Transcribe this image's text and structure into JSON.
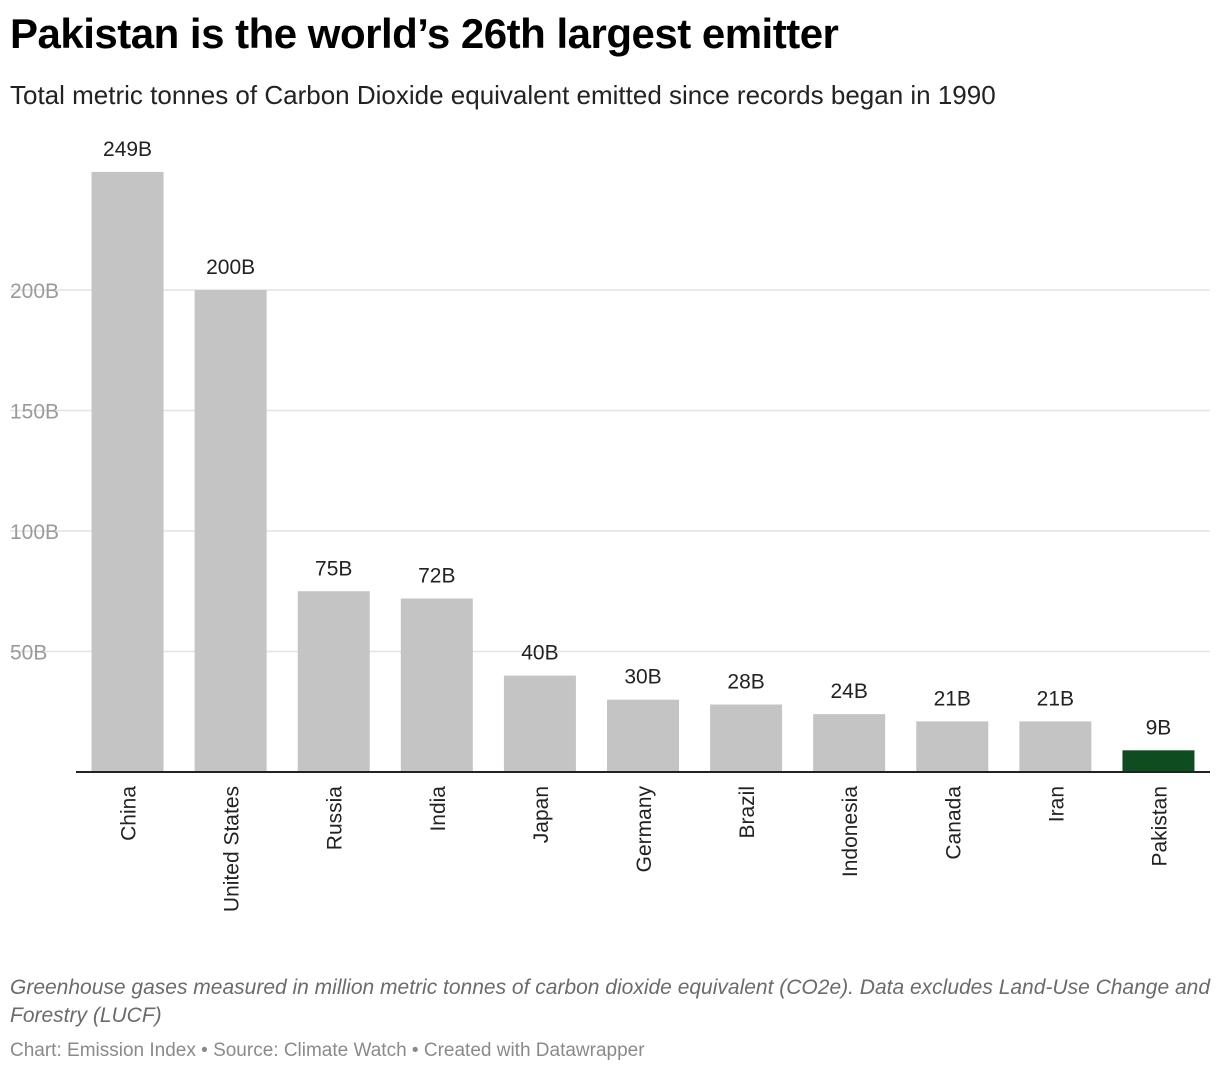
{
  "header": {
    "title": "Pakistan is the world’s 26th largest emitter",
    "subtitle": "Total metric tonnes of Carbon Dioxide equivalent emitted since records began in 1990"
  },
  "chart_data": {
    "type": "bar",
    "categories": [
      "China",
      "United States",
      "Russia",
      "India",
      "Japan",
      "Germany",
      "Brazil",
      "Indonesia",
      "Canada",
      "Iran",
      "Pakistan"
    ],
    "values": [
      249,
      200,
      75,
      72,
      40,
      30,
      28,
      24,
      21,
      21,
      9
    ],
    "value_labels": [
      "249B",
      "200B",
      "75B",
      "72B",
      "40B",
      "30B",
      "28B",
      "24B",
      "21B",
      "21B",
      "9B"
    ],
    "unit": "B",
    "yticks": [
      50,
      100,
      150,
      200
    ],
    "ytick_labels": [
      "50B",
      "100B",
      "150B",
      "200B"
    ],
    "ylim": [
      0,
      249
    ],
    "grid": true,
    "colors": {
      "default_bar": "#c4c4c4",
      "highlight_bar": "#0f4d20",
      "highlight_category": "Pakistan"
    }
  },
  "footer": {
    "notes": "Greenhouse gases measured in million metric tonnes of carbon dioxide equivalent (CO2e). Data excludes Land-Use Change and Forestry (LUCF)",
    "byline": "Chart: Emission Index • Source: Climate Watch • Created with Datawrapper"
  }
}
